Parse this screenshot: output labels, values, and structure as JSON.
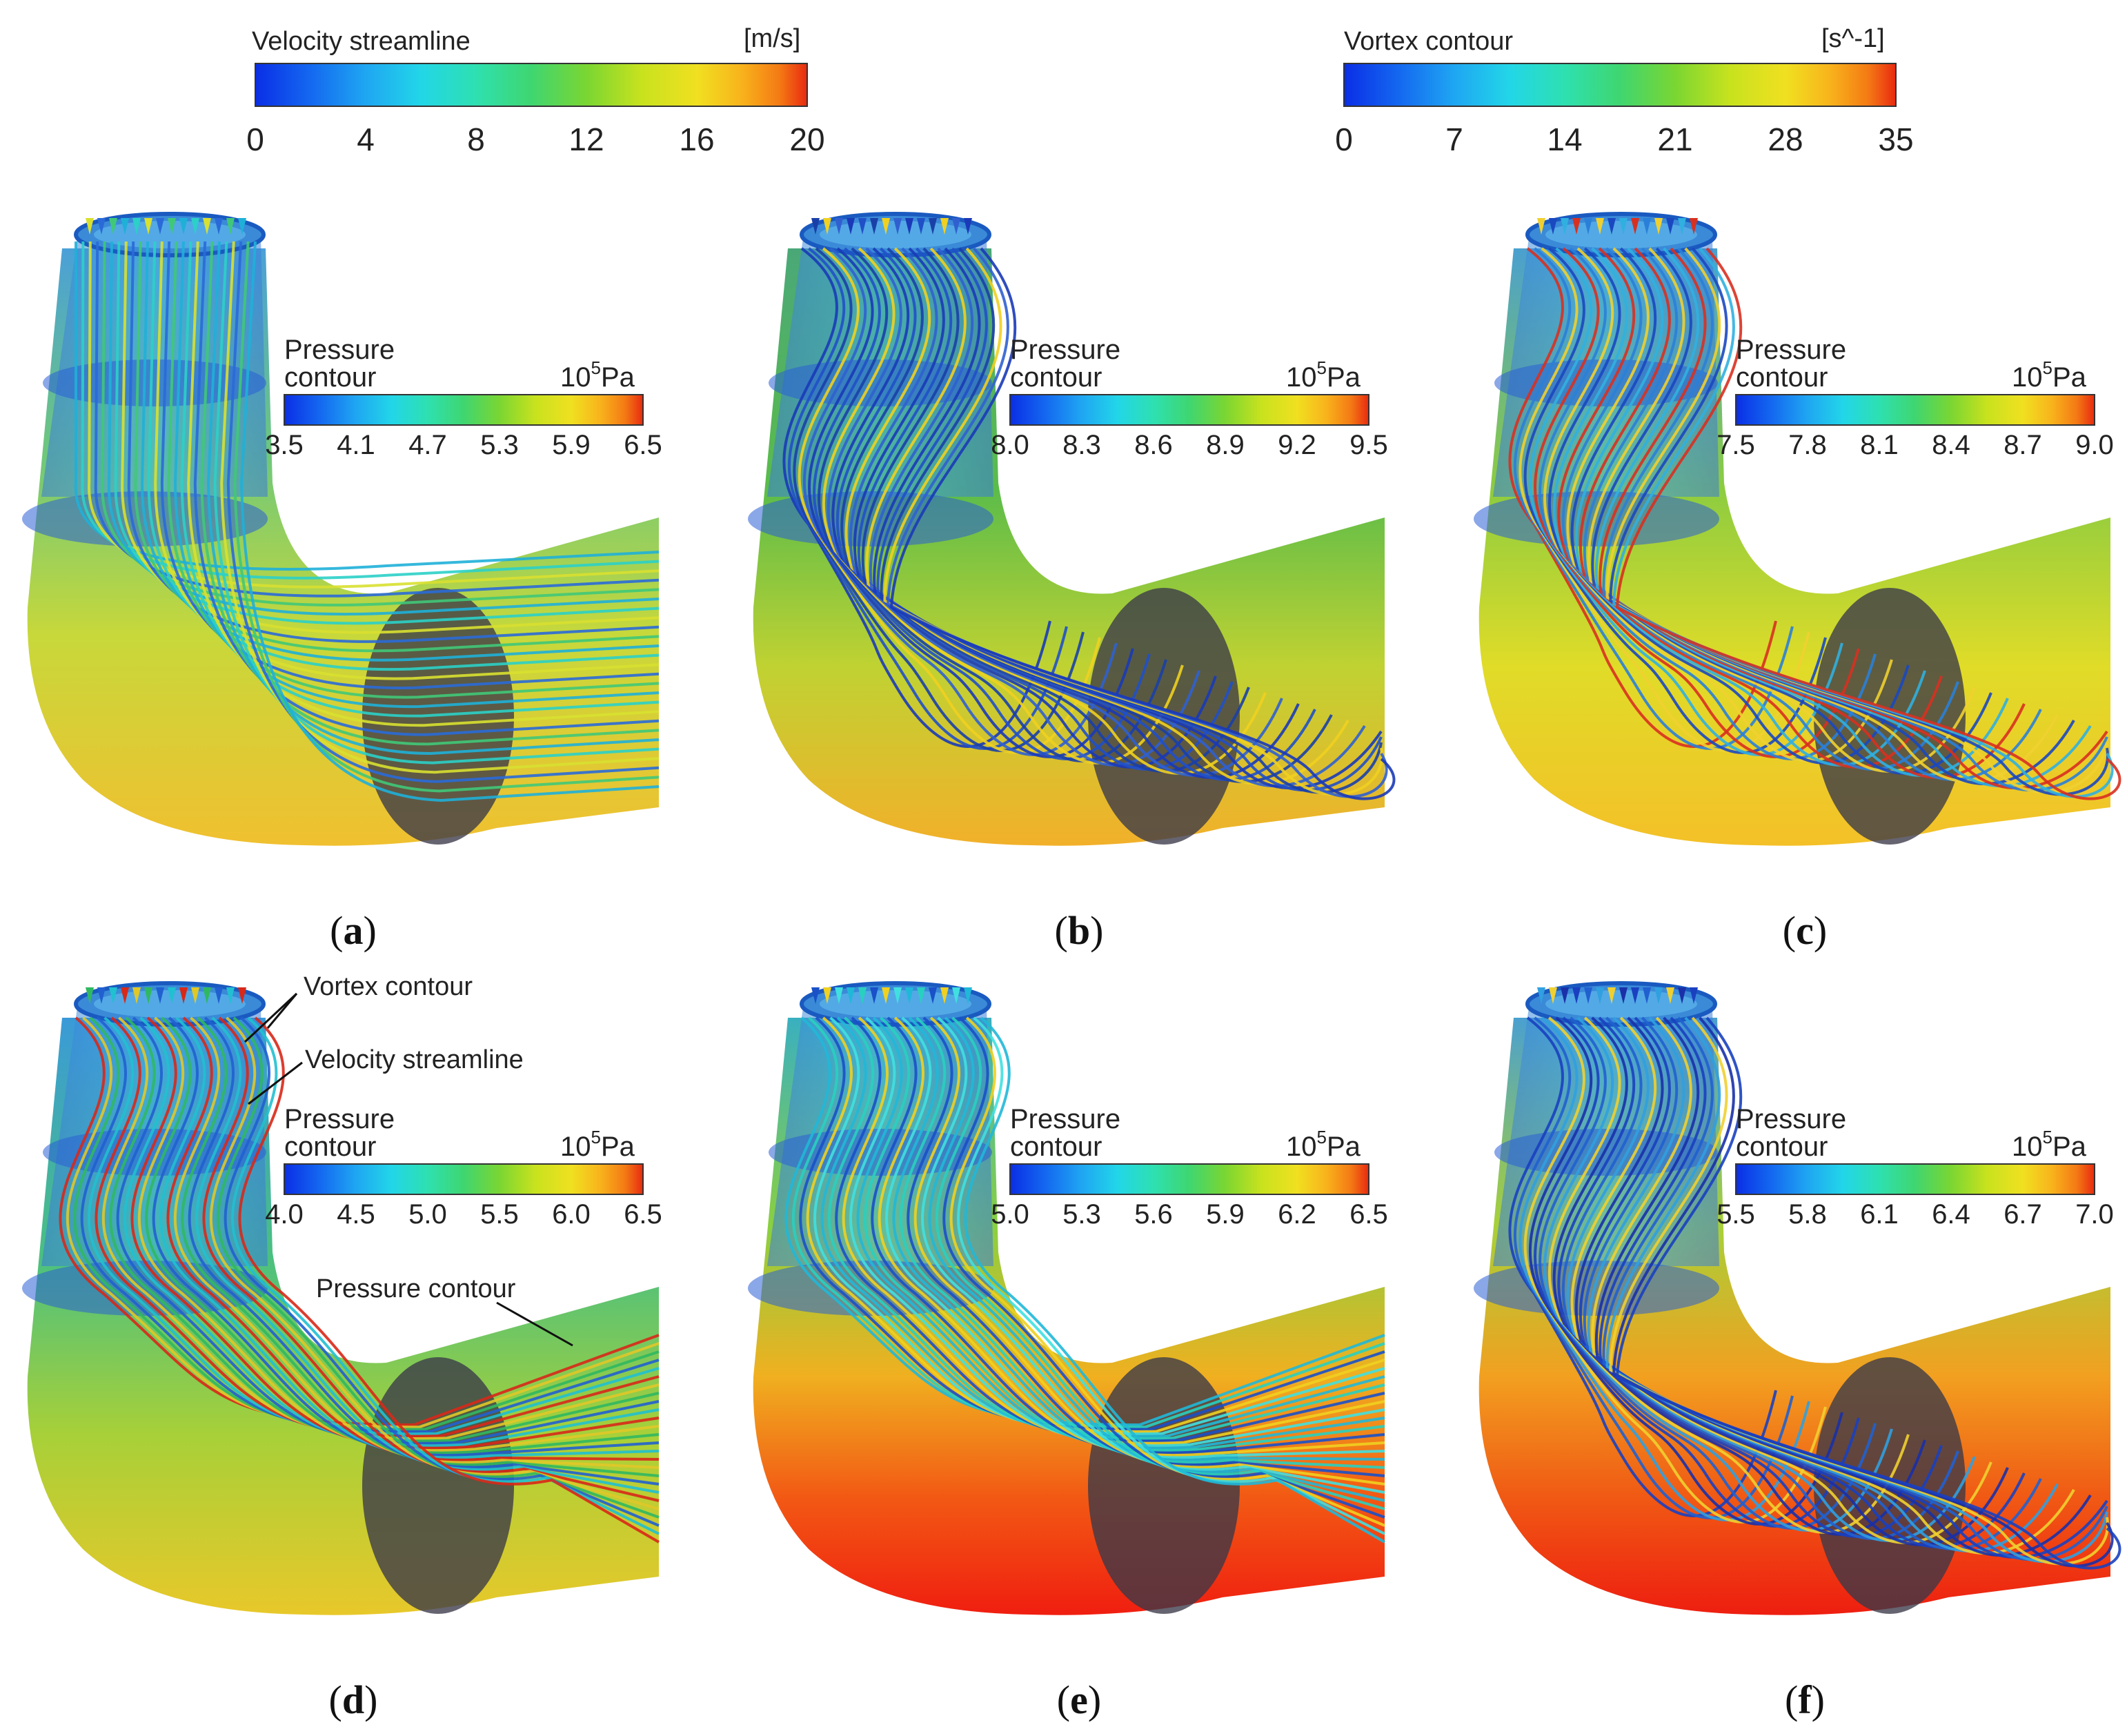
{
  "top_legends": {
    "velocity": {
      "title": "Velocity streamline",
      "unit": "[m/s]",
      "ticks": [
        "0",
        "4",
        "8",
        "12",
        "16",
        "20"
      ]
    },
    "vortex": {
      "title": "Vortex contour",
      "unit": "[s^-1]",
      "ticks": [
        "0",
        "7",
        "14",
        "21",
        "28",
        "35"
      ]
    }
  },
  "pressure_legend": {
    "title_line1": "Pressure",
    "title_line2": "contour",
    "unit_base": "10",
    "unit_exp": "5",
    "unit_suffix": "Pa"
  },
  "panels": [
    {
      "label": "a",
      "ticks": [
        "3.5",
        "4.1",
        "4.7",
        "5.3",
        "5.9",
        "6.5"
      ]
    },
    {
      "label": "b",
      "ticks": [
        "8.0",
        "8.3",
        "8.6",
        "8.9",
        "9.2",
        "9.5"
      ]
    },
    {
      "label": "c",
      "ticks": [
        "7.5",
        "7.8",
        "8.1",
        "8.4",
        "8.7",
        "9.0"
      ]
    },
    {
      "label": "d",
      "ticks": [
        "4.0",
        "4.5",
        "5.0",
        "5.5",
        "6.0",
        "6.5"
      ]
    },
    {
      "label": "e",
      "ticks": [
        "5.0",
        "5.3",
        "5.6",
        "5.9",
        "6.2",
        "6.5"
      ]
    },
    {
      "label": "f",
      "ticks": [
        "5.5",
        "5.8",
        "6.1",
        "6.4",
        "6.7",
        "7.0"
      ]
    }
  ],
  "annotations": {
    "vortex": "Vortex contour",
    "velocity": "Velocity streamline",
    "pressure": "Pressure contour"
  },
  "colors": {
    "rainbow": [
      "#0a2ee6",
      "#1468f0",
      "#1fa6f2",
      "#22d6e8",
      "#2ee0b0",
      "#3fd670",
      "#7ad632",
      "#c8e21e",
      "#f0e020",
      "#f8b41c",
      "#f47a14",
      "#e82a10"
    ],
    "pipe_blue": "#2a5fd6",
    "section_dark": "#3a3848"
  }
}
